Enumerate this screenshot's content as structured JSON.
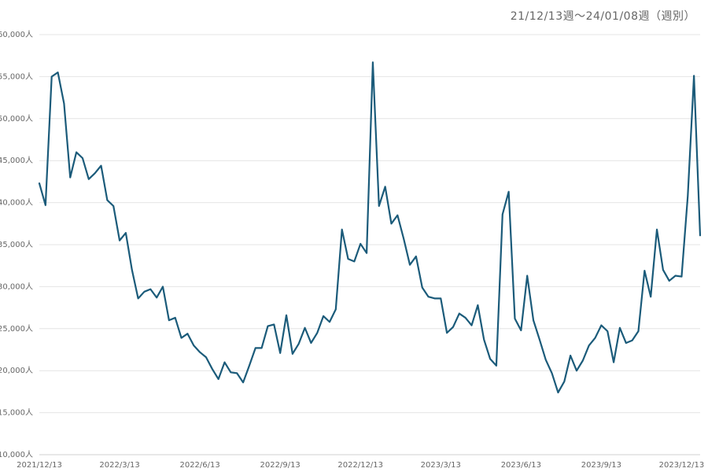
{
  "chart_data": {
    "type": "line",
    "title": "21/12/13週～24/01/08週（週別）",
    "xlabel": "",
    "ylabel": "",
    "ylim": [
      10000,
      60000
    ],
    "yticks": [
      10000,
      15000,
      20000,
      25000,
      30000,
      35000,
      40000,
      45000,
      50000,
      55000,
      60000
    ],
    "ytick_labels": [
      "10,000人",
      "15,000人",
      "20,000人",
      "25,000人",
      "30,000人",
      "35,000人",
      "40,000人",
      "45,000人",
      "50,000人",
      "55,000人",
      "60,000人"
    ],
    "xtick_labels": [
      "2021/12/13",
      "2022/3/13",
      "2022/6/13",
      "2022/9/13",
      "2022/12/13",
      "2023/3/13",
      "2023/6/13",
      "2023/9/13",
      "2023/12/13"
    ],
    "xtick_weeks": [
      0,
      13,
      26,
      39,
      52,
      65,
      78,
      91,
      104
    ],
    "grid": true,
    "legend": "none",
    "color": "#1b5b7a",
    "series": [
      {
        "name": "",
        "x_start": "2021/12/13",
        "x_step": "1 week",
        "values": [
          42300,
          39700,
          55000,
          55500,
          51800,
          43000,
          46000,
          45300,
          42800,
          43500,
          44400,
          40300,
          39600,
          35500,
          36400,
          32000,
          28600,
          29400,
          29700,
          28700,
          30000,
          26000,
          26300,
          23900,
          24400,
          23000,
          22200,
          21600,
          20200,
          19000,
          21000,
          19800,
          19700,
          18600,
          20600,
          22700,
          22700,
          25300,
          25500,
          22100,
          26600,
          22000,
          23200,
          25100,
          23300,
          24500,
          26500,
          25800,
          27300,
          36800,
          33300,
          33000,
          35100,
          34000,
          56700,
          39600,
          41900,
          37500,
          38500,
          35700,
          32600,
          33600,
          29900,
          28800,
          28600,
          28600,
          24500,
          25200,
          26800,
          26300,
          25400,
          27800,
          23700,
          21400,
          20600,
          38600,
          41300,
          26200,
          24800,
          31300,
          26000,
          23700,
          21300,
          19700,
          17400,
          18700,
          21800,
          20000,
          21200,
          23000,
          23900,
          25400,
          24700,
          21000,
          25100,
          23300,
          23600,
          24700,
          31900,
          28800,
          36800,
          32000,
          30700,
          31300,
          31200,
          40800,
          55100,
          36100
        ]
      }
    ]
  }
}
